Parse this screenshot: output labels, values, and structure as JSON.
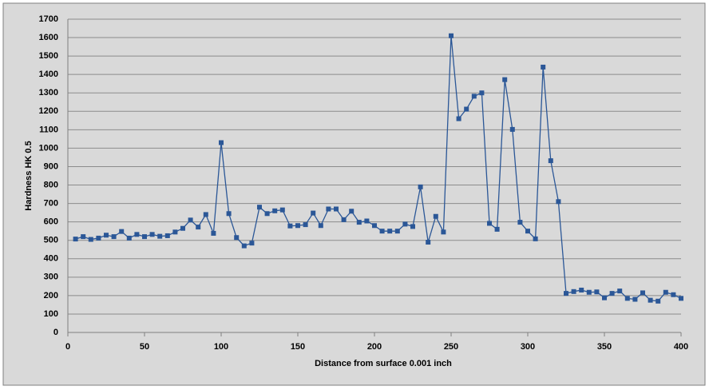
{
  "chart_data": {
    "type": "line",
    "x_label": "Distance  from surface 0.001 inch",
    "y_label": "Hardness  HK 0.5",
    "x": [
      5,
      10,
      15,
      20,
      25,
      30,
      35,
      40,
      45,
      50,
      55,
      60,
      65,
      70,
      75,
      80,
      85,
      90,
      95,
      100,
      105,
      110,
      115,
      120,
      125,
      130,
      135,
      140,
      145,
      150,
      155,
      160,
      165,
      170,
      175,
      180,
      185,
      190,
      195,
      200,
      205,
      210,
      215,
      220,
      225,
      230,
      235,
      240,
      245,
      250,
      255,
      260,
      265,
      270,
      275,
      280,
      285,
      290,
      295,
      300,
      305,
      310,
      315,
      320,
      325,
      330,
      335,
      340,
      345,
      350,
      355,
      360,
      365,
      370,
      375,
      380,
      385,
      390,
      395,
      400
    ],
    "series": [
      {
        "name": "Hardness",
        "color": "#2b5797",
        "values": [
          507,
          520,
          505,
          512,
          528,
          520,
          548,
          512,
          532,
          520,
          532,
          522,
          525,
          545,
          565,
          610,
          572,
          640,
          538,
          1030,
          645,
          515,
          470,
          485,
          680,
          645,
          660,
          665,
          578,
          580,
          585,
          648,
          580,
          670,
          670,
          612,
          658,
          598,
          605,
          580,
          550,
          550,
          550,
          588,
          575,
          790,
          490,
          630,
          545,
          1610,
          1160,
          1212,
          1282,
          1300,
          592,
          560,
          1372,
          1102,
          598,
          550,
          508,
          1440,
          932,
          710,
          212,
          222,
          230,
          218,
          220,
          188,
          212,
          225,
          185,
          180,
          215,
          175,
          170,
          218,
          205,
          185
        ]
      }
    ],
    "xlim": [
      0,
      400
    ],
    "xticks": [
      0,
      50,
      100,
      150,
      200,
      250,
      300,
      350,
      400
    ],
    "ylim": [
      0,
      1700
    ],
    "yticks": [
      0,
      100,
      200,
      300,
      400,
      500,
      600,
      700,
      800,
      900,
      1000,
      1100,
      1200,
      1300,
      1400,
      1500,
      1600,
      1700
    ],
    "grid": true
  }
}
